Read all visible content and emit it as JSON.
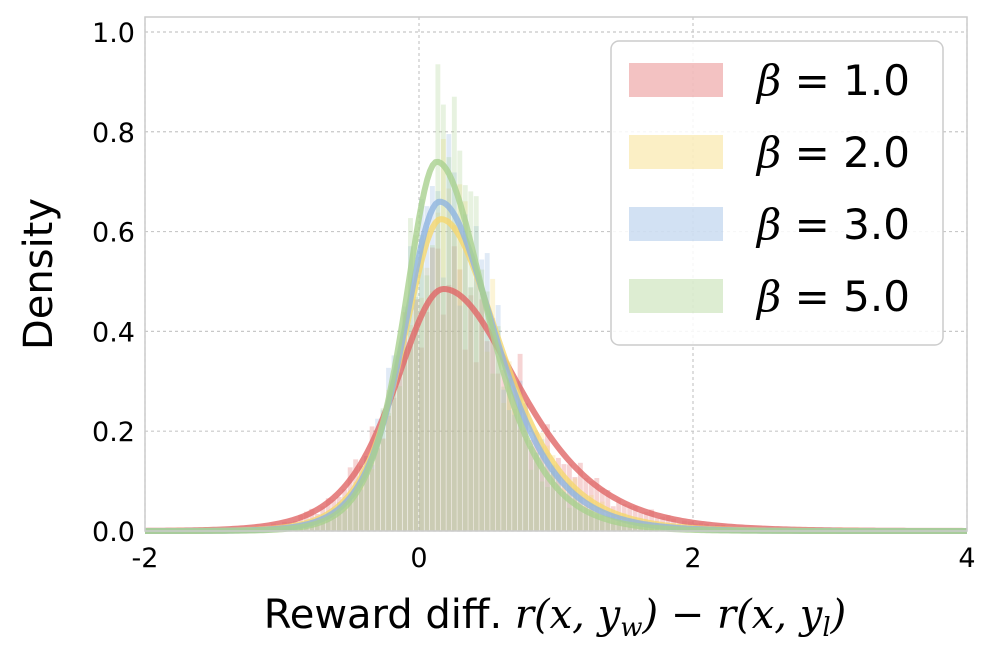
{
  "chart_data": {
    "type": "histogram-kde",
    "xlabel": "Reward diff. r(x, y_w) − r(x, y_l)",
    "xlabel_parts": {
      "prefix": "Reward diff. ",
      "math": "r(x, y",
      "sub_w": "w",
      "mid": ") − r(x, y",
      "sub_l": "l",
      "end": ")"
    },
    "ylabel": "Density",
    "xlim": [
      -2,
      4
    ],
    "ylim": [
      0,
      1.03
    ],
    "xticks": [
      -2,
      0,
      2,
      4
    ],
    "xtick_labels": [
      "-2",
      "0",
      "2",
      "4"
    ],
    "yticks": [
      0.0,
      0.2,
      0.4,
      0.6,
      0.8,
      1.0
    ],
    "ytick_labels": [
      "0.0",
      "0.2",
      "0.4",
      "0.6",
      "0.8",
      "1.0"
    ],
    "grid": true,
    "legend_position": "top-right",
    "series": [
      {
        "name": "β = 1.0",
        "symbol": "β",
        "value": "1.0",
        "color": "#e06666",
        "mode": 0.18,
        "peak": 0.485,
        "scale": 0.42
      },
      {
        "name": "β = 2.0",
        "symbol": "β",
        "value": "2.0",
        "color": "#f5d76e",
        "mode": 0.16,
        "peak": 0.625,
        "scale": 0.33
      },
      {
        "name": "β = 3.0",
        "symbol": "β",
        "value": "3.0",
        "color": "#8fb4e0",
        "mode": 0.15,
        "peak": 0.66,
        "scale": 0.31
      },
      {
        "name": "β = 5.0",
        "symbol": "β",
        "value": "5.0",
        "color": "#a9d18e",
        "mode": 0.13,
        "peak": 0.74,
        "scale": 0.28
      }
    ]
  }
}
